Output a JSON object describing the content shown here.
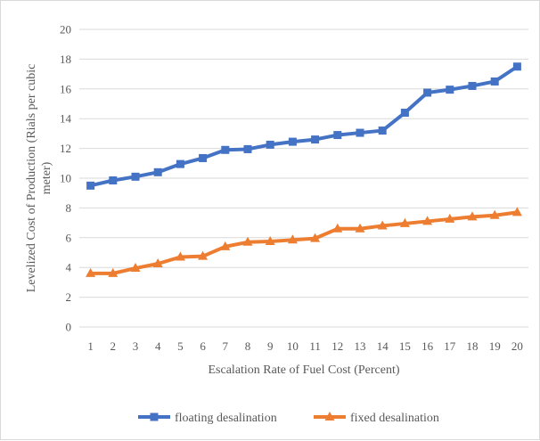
{
  "chart_data": {
    "type": "line",
    "xlabel": "Escalation Rate of Fuel Cost (Percent)",
    "ylabel_lines": [
      "Levelized Cost of Production (Rials per cubic",
      "meter)"
    ],
    "ylim": [
      0,
      20
    ],
    "ytick_step": 2,
    "y_ticks": [
      "0",
      "2",
      "4",
      "6",
      "8",
      "10",
      "12",
      "14",
      "16",
      "18",
      "20"
    ],
    "categories": [
      "1",
      "2",
      "3",
      "4",
      "5",
      "6",
      "7",
      "8",
      "9",
      "10",
      "11",
      "12",
      "13",
      "14",
      "15",
      "16",
      "17",
      "18",
      "19",
      "20"
    ],
    "grid": "horizontal",
    "legend_position": "bottom",
    "series": [
      {
        "name": "floating desalination",
        "color": "#4472C4",
        "marker": "square",
        "values": [
          9.5,
          9.85,
          10.1,
          10.4,
          10.95,
          11.35,
          11.9,
          11.95,
          12.25,
          12.45,
          12.6,
          12.9,
          13.05,
          13.2,
          14.4,
          15.75,
          15.95,
          16.2,
          16.5,
          17.5
        ]
      },
      {
        "name": "fixed desalination",
        "color": "#ED7D31",
        "marker": "triangle",
        "values": [
          3.6,
          3.6,
          3.95,
          4.25,
          4.7,
          4.75,
          5.4,
          5.7,
          5.75,
          5.85,
          5.95,
          6.6,
          6.6,
          6.8,
          6.95,
          7.1,
          7.25,
          7.4,
          7.5,
          7.7
        ]
      }
    ],
    "axis_line_color": "#d9d9d9",
    "grid_color": "#d9d9d9"
  }
}
